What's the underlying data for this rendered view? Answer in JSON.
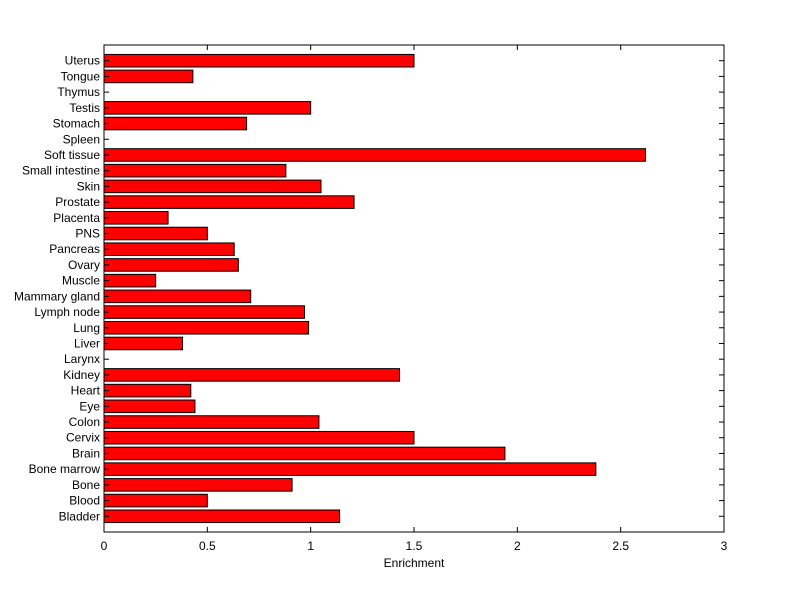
{
  "chart_data": {
    "type": "bar",
    "orientation": "horizontal",
    "title": "",
    "xlabel": "Enrichment",
    "ylabel": "",
    "xlim": [
      0,
      3
    ],
    "xticks": [
      0,
      0.5,
      1,
      1.5,
      2,
      2.5,
      3
    ],
    "xtick_labels": [
      "0",
      "0.5",
      "1",
      "1.5",
      "2",
      "2.5",
      "3"
    ],
    "grid": false,
    "legend": "none",
    "bar_color": "#ff0000",
    "edge_color": "#000000",
    "categories": [
      "Bladder",
      "Blood",
      "Bone",
      "Bone marrow",
      "Brain",
      "Cervix",
      "Colon",
      "Eye",
      "Heart",
      "Kidney",
      "Larynx",
      "Liver",
      "Lung",
      "Lymph node",
      "Mammary gland",
      "Muscle",
      "Ovary",
      "Pancreas",
      "PNS",
      "Placenta",
      "Prostate",
      "Skin",
      "Small intestine",
      "Soft tissue",
      "Spleen",
      "Stomach",
      "Testis",
      "Thymus",
      "Tongue",
      "Uterus"
    ],
    "values": [
      1.14,
      0.5,
      0.91,
      2.38,
      1.94,
      1.5,
      1.04,
      0.44,
      0.42,
      1.43,
      0,
      0.38,
      0.99,
      0.97,
      0.71,
      0.25,
      0.65,
      0.63,
      0.5,
      0.31,
      1.21,
      1.05,
      0.88,
      2.62,
      0,
      0.69,
      1.0,
      0,
      0.43,
      1.5
    ]
  }
}
